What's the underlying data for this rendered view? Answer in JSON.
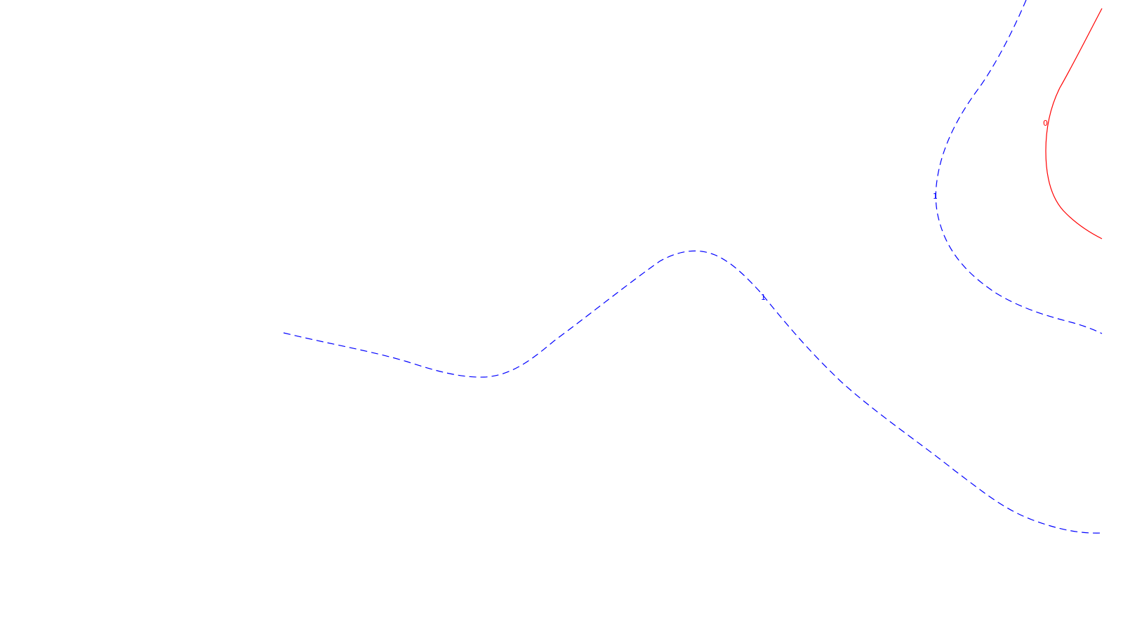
{
  "map": {
    "contours": [
      {
        "id": "dashed-left",
        "value": "1",
        "label_text": "1",
        "color": "#0000ff",
        "style": "dashed"
      },
      {
        "id": "dashed-right",
        "value": "1",
        "label_text": "1",
        "color": "#0000ff",
        "style": "dashed"
      },
      {
        "id": "solid-right",
        "value": "0",
        "label_text": "0",
        "color": "#ff0000",
        "style": "solid"
      }
    ]
  }
}
